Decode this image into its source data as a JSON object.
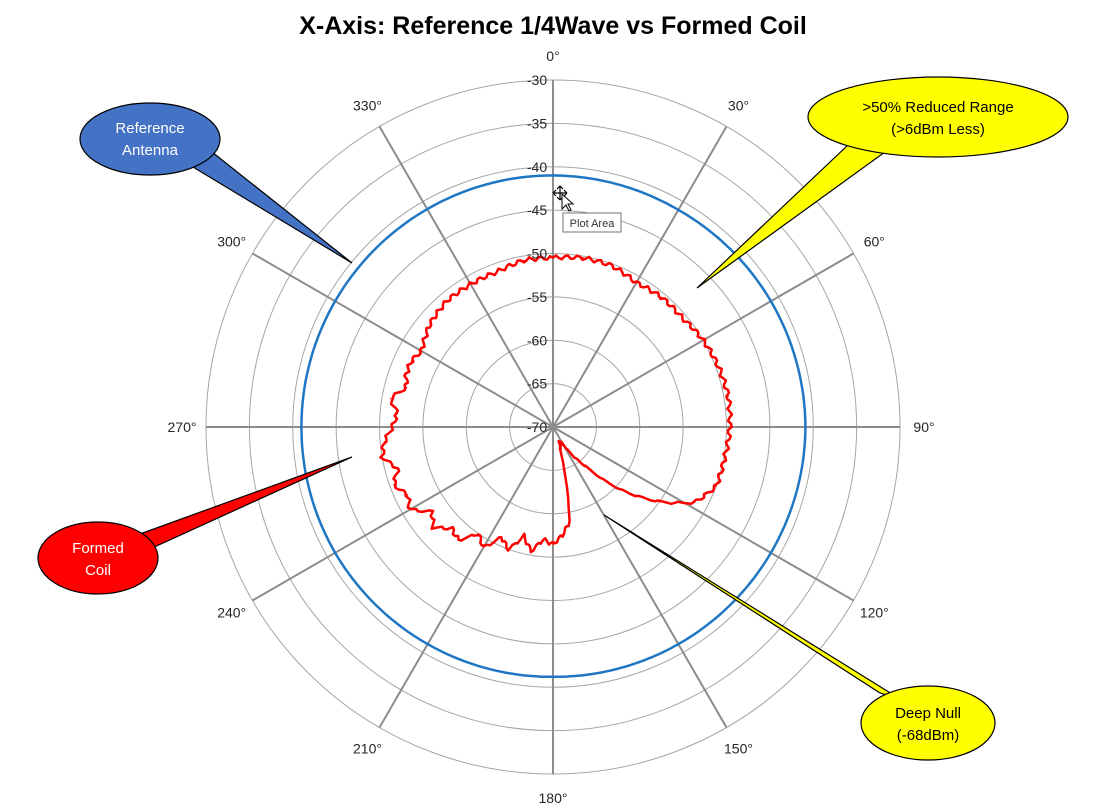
{
  "chart_data": {
    "type": "polar-line",
    "title": "X-Axis: Reference 1/4Wave vs Formed Coil",
    "radial_axis": {
      "min": -70,
      "max": -30,
      "step": 5,
      "ticks": [
        "-30",
        "-35",
        "-40",
        "-45",
        "-50",
        "-55",
        "-60",
        "-65",
        "-70"
      ]
    },
    "angular_axis": {
      "direction": "clockwise",
      "zero": "top",
      "spoke_step": 30,
      "ticks": [
        "0°",
        "30°",
        "60°",
        "90°",
        "120°",
        "150°",
        "180°",
        "210°",
        "240°",
        "270°",
        "300°",
        "330°"
      ]
    },
    "grid": true,
    "series": [
      {
        "color": "#1f77c4",
        "angles": [
          0,
          30,
          60,
          90,
          120,
          150,
          180,
          210,
          240,
          270,
          300,
          330,
          360
        ],
        "values": [
          -41.0,
          -41.1,
          -41.0,
          -40.9,
          -41.0,
          -41.1,
          -41.2,
          -41.1,
          -41.0,
          -41.0,
          -41.0,
          -41.0,
          -41.0
        ]
      },
      {
        "color": "#ff0000",
        "angles": [
          0,
          10,
          20,
          30,
          40,
          50,
          60,
          70,
          80,
          90,
          100,
          110,
          118,
          125,
          133,
          140,
          150,
          158,
          163,
          167,
          170,
          175,
          180,
          185,
          190,
          195,
          200,
          205,
          210,
          215,
          220,
          225,
          230,
          235,
          240,
          245,
          250,
          255,
          260,
          265,
          270,
          275,
          280,
          285,
          290,
          295,
          300,
          310,
          320,
          330,
          340,
          350,
          360
        ],
        "values": [
          -50.5,
          -50.2,
          -50.2,
          -50.8,
          -50.5,
          -50.5,
          -50.0,
          -49.7,
          -49.5,
          -49.6,
          -49.9,
          -50.0,
          -51.5,
          -55.0,
          -59.5,
          -64.0,
          -67.8,
          -68.0,
          -67.0,
          -63.0,
          -59.0,
          -57.5,
          -56.5,
          -57.0,
          -55.5,
          -57.0,
          -55.0,
          -56.0,
          -54.0,
          -55.0,
          -53.0,
          -53.5,
          -52.0,
          -53.0,
          -51.0,
          -51.5,
          -50.5,
          -51.5,
          -50.0,
          -50.5,
          -51.5,
          -52.0,
          -51.0,
          -52.5,
          -52.0,
          -52.0,
          -52.5,
          -51.5,
          -51.0,
          -51.0,
          -51.0,
          -50.5,
          -50.5
        ]
      }
    ],
    "callouts": [
      {
        "text": [
          "Reference",
          "Antenna"
        ],
        "fill": "#4472c4",
        "text_color": "#ffffff"
      },
      {
        "text": [
          ">50% Reduced Range",
          "(>6dBm Less)"
        ],
        "fill": "#ffff00",
        "text_color": "#000000"
      },
      {
        "text": [
          "Formed",
          "Coil"
        ],
        "fill": "#ff0000",
        "text_color": "#ffffff"
      },
      {
        "text": [
          "Deep Null",
          "(-68dBm)"
        ],
        "fill": "#ffff00",
        "text_color": "#000000"
      }
    ],
    "tooltip": "Plot Area"
  }
}
